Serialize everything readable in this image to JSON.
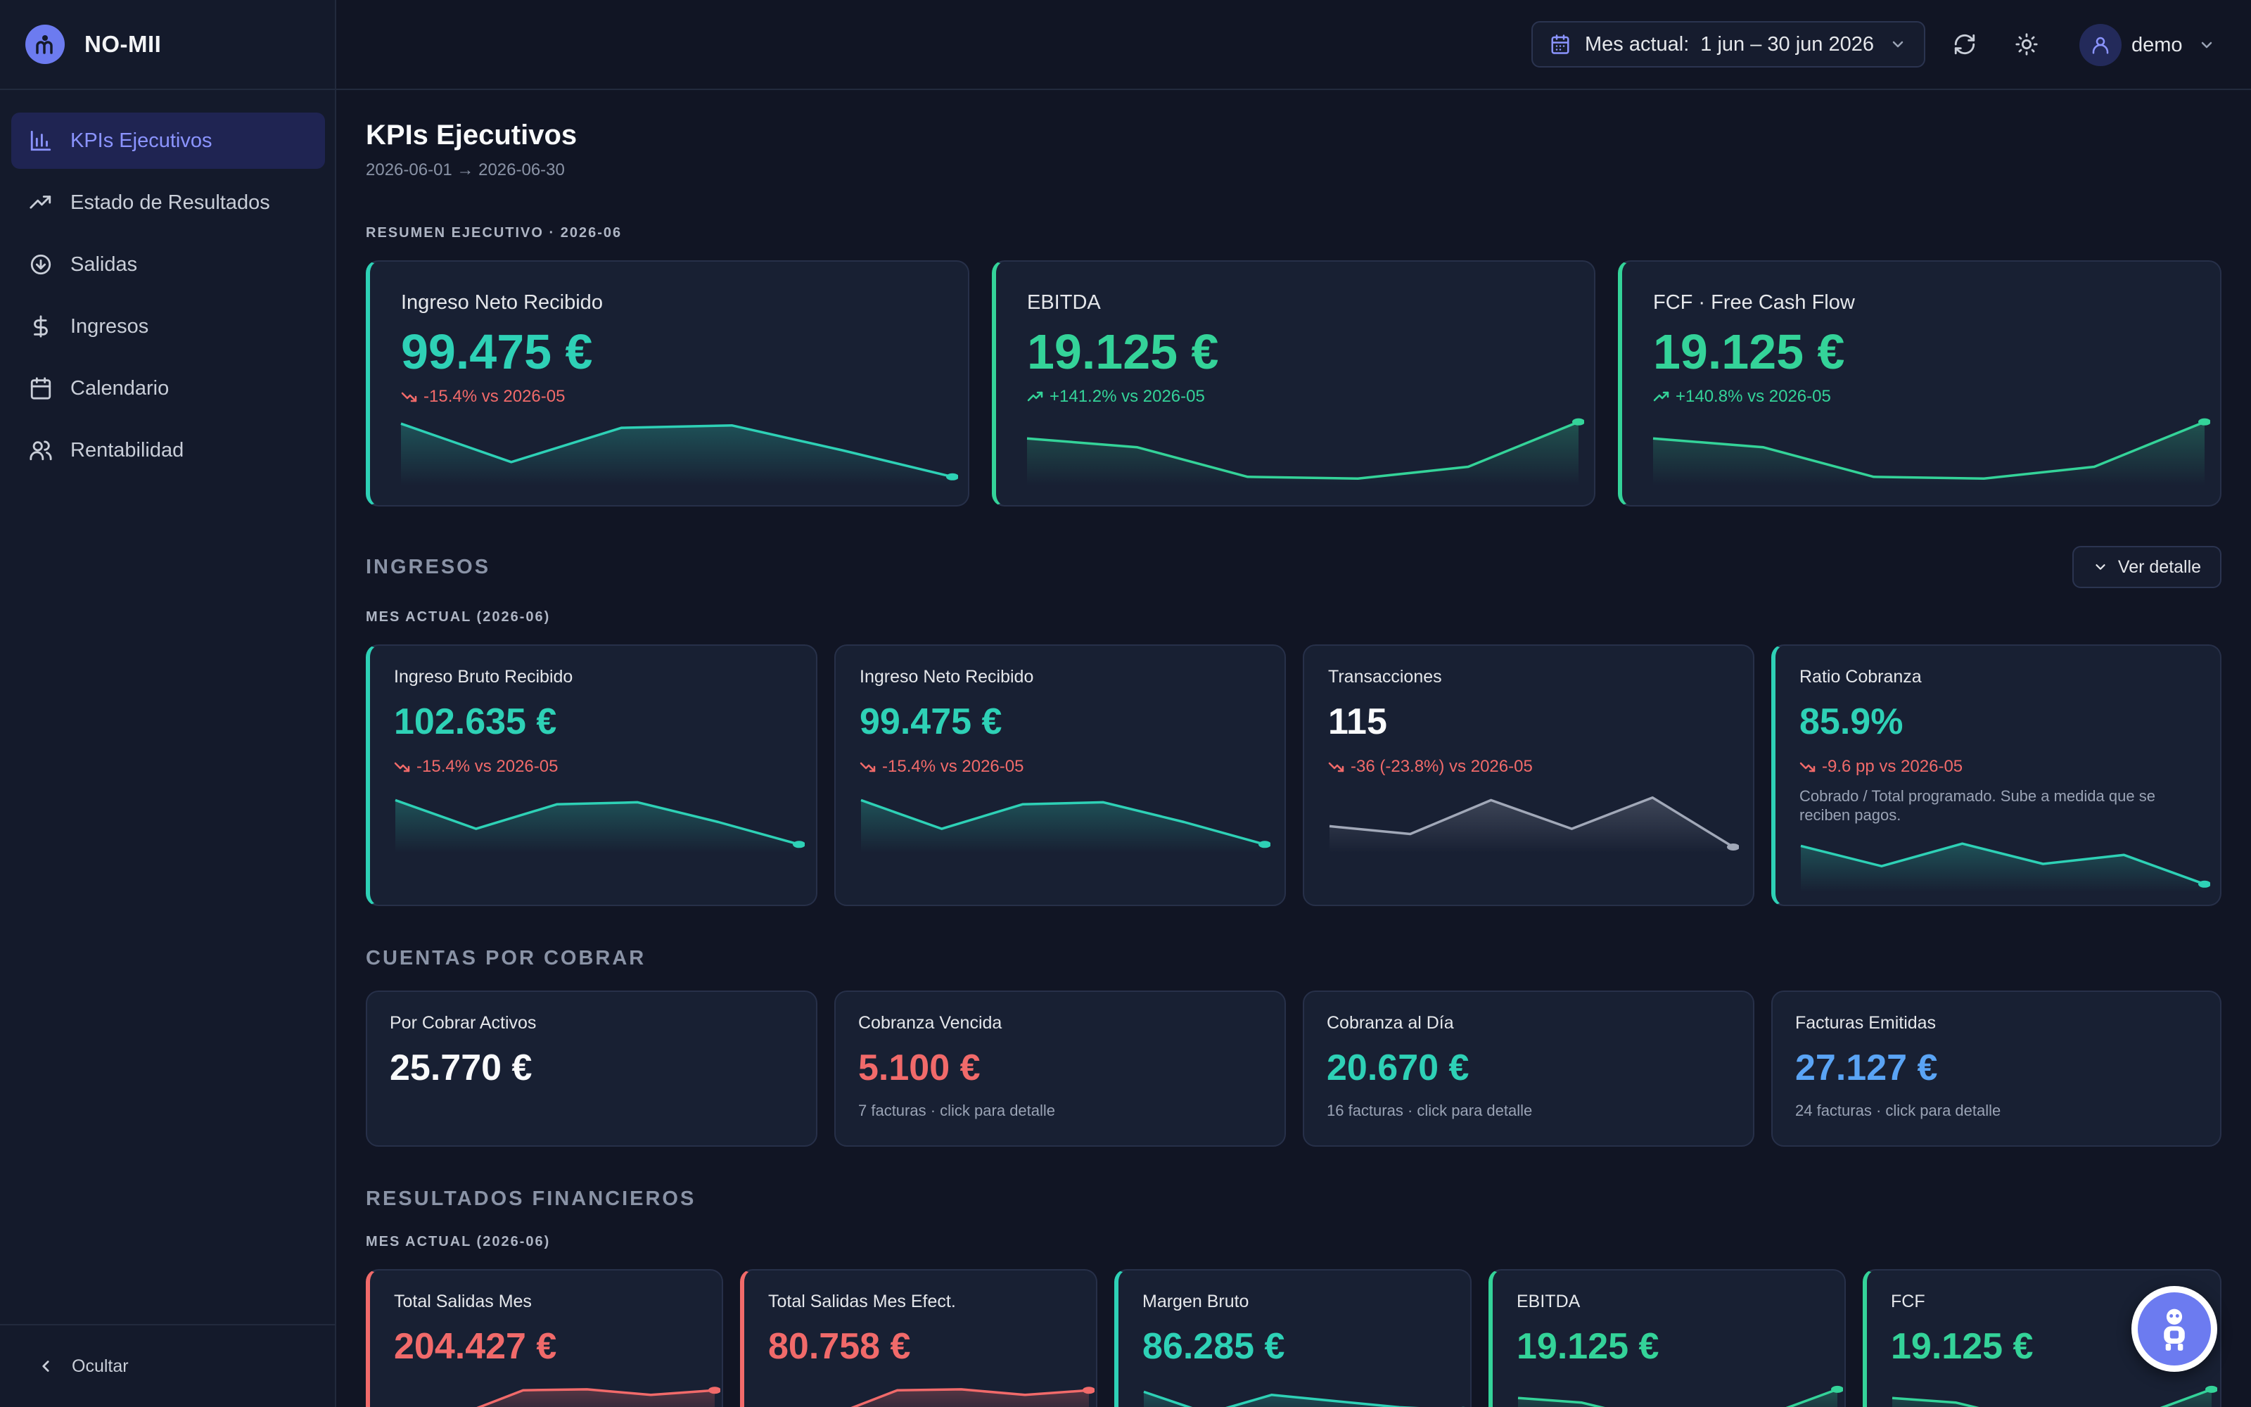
{
  "app": {
    "name": "NO-MII"
  },
  "sidebar": {
    "items": [
      {
        "label": "KPIs Ejecutivos",
        "icon": "bar-chart-icon",
        "active": true
      },
      {
        "label": "Estado de Resultados",
        "icon": "trending-up-icon"
      },
      {
        "label": "Salidas",
        "icon": "arrow-down-circle-icon"
      },
      {
        "label": "Ingresos",
        "icon": "dollar-icon"
      },
      {
        "label": "Calendario",
        "icon": "calendar-icon"
      },
      {
        "label": "Rentabilidad",
        "icon": "users-icon"
      }
    ],
    "footer_label": "Ocultar"
  },
  "topbar": {
    "date_label": "Mes actual:",
    "date_range": "1 jun – 30 jun 2026",
    "user": "demo"
  },
  "page": {
    "title": "KPIs Ejecutivos",
    "subtitle": "2026-06-01 → 2026-06-30"
  },
  "summary": {
    "label": "RESUMEN EJECUTIVO · 2026-06",
    "cards": [
      {
        "title": "Ingreso Neto Recibido",
        "value": "99.475 €",
        "delta": "-15.4% vs 2026-05",
        "trend": "down",
        "spark": [
          0.95,
          0.3,
          0.88,
          0.92,
          0.5,
          0.05
        ],
        "color": "#2ed1b6"
      },
      {
        "title": "EBITDA",
        "value": "19.125 €",
        "delta": "+141.2% vs 2026-05",
        "trend": "up",
        "spark": [
          0.7,
          0.55,
          0.05,
          0.02,
          0.22,
          0.98
        ],
        "color": "#34d399"
      },
      {
        "title": "FCF · Free Cash Flow",
        "value": "19.125 €",
        "delta": "+140.8% vs 2026-05",
        "trend": "up",
        "spark": [
          0.7,
          0.55,
          0.05,
          0.02,
          0.22,
          0.98
        ],
        "color": "#34d399"
      }
    ]
  },
  "ingresos": {
    "title": "INGRESOS",
    "detail_button": "Ver detalle",
    "label": "MES ACTUAL (2026-06)",
    "cards": [
      {
        "title": "Ingreso Bruto Recibido",
        "value": "102.635 €",
        "delta": "-15.4% vs 2026-05",
        "trend": "down",
        "spark": [
          0.9,
          0.35,
          0.82,
          0.86,
          0.48,
          0.05
        ],
        "color": "#2ed1b6",
        "accent": true
      },
      {
        "title": "Ingreso Neto Recibido",
        "value": "99.475 €",
        "delta": "-15.4% vs 2026-05",
        "trend": "down",
        "spark": [
          0.9,
          0.35,
          0.82,
          0.86,
          0.48,
          0.05
        ],
        "color": "#2ed1b6",
        "accent": false
      },
      {
        "title": "Transacciones",
        "value": "115",
        "delta": "-36 (-23.8%) vs 2026-05",
        "trend": "down",
        "spark": [
          0.4,
          0.25,
          0.9,
          0.35,
          0.95,
          0.0
        ],
        "color": "#a1a8b8",
        "accent": false
      },
      {
        "title": "Ratio Cobranza",
        "value": "85.9%",
        "delta": "-9.6 pp vs 2026-05",
        "trend": "down",
        "note": "Cobrado / Total programado. Sube a medida que se reciben pagos.",
        "spark": [
          0.9,
          0.45,
          0.95,
          0.5,
          0.7,
          0.05
        ],
        "color": "#2ed1b6",
        "accent": true
      }
    ]
  },
  "cuentas": {
    "title": "CUENTAS POR COBRAR",
    "cards": [
      {
        "title": "Por Cobrar Activos",
        "value": "25.770 €",
        "note": ""
      },
      {
        "title": "Cobranza Vencida",
        "value": "5.100 €",
        "note": "7 facturas · click para detalle"
      },
      {
        "title": "Cobranza al Día",
        "value": "20.670 €",
        "note": "16 facturas · click para detalle"
      },
      {
        "title": "Facturas Emitidas",
        "value": "27.127 €",
        "note": "24 facturas · click para detalle"
      }
    ]
  },
  "resultados": {
    "title": "RESULTADOS FINANCIEROS",
    "label": "MES ACTUAL (2026-06)",
    "cards": [
      {
        "title": "Total Salidas Mes",
        "value": "204.427 €",
        "spark": [
          0.0,
          0.15,
          0.95,
          0.98,
          0.8,
          0.95
        ],
        "color": "#f16a6a"
      },
      {
        "title": "Total Salidas Mes Efect.",
        "value": "80.758 €",
        "spark": [
          0.0,
          0.15,
          0.95,
          0.98,
          0.8,
          0.95
        ],
        "color": "#f16a6a"
      },
      {
        "title": "Margen Bruto",
        "value": "86.285 €",
        "spark": [
          0.9,
          0.2,
          0.8,
          0.6,
          0.4,
          0.3
        ],
        "color": "#2ed1b6"
      },
      {
        "title": "EBITDA",
        "value": "19.125 €",
        "spark": [
          0.7,
          0.55,
          0.05,
          0.02,
          0.22,
          0.98
        ],
        "color": "#34d399"
      },
      {
        "title": "FCF",
        "value": "19.125 €",
        "spark": [
          0.7,
          0.55,
          0.05,
          0.02,
          0.22,
          0.98
        ],
        "color": "#34d399"
      }
    ]
  }
}
